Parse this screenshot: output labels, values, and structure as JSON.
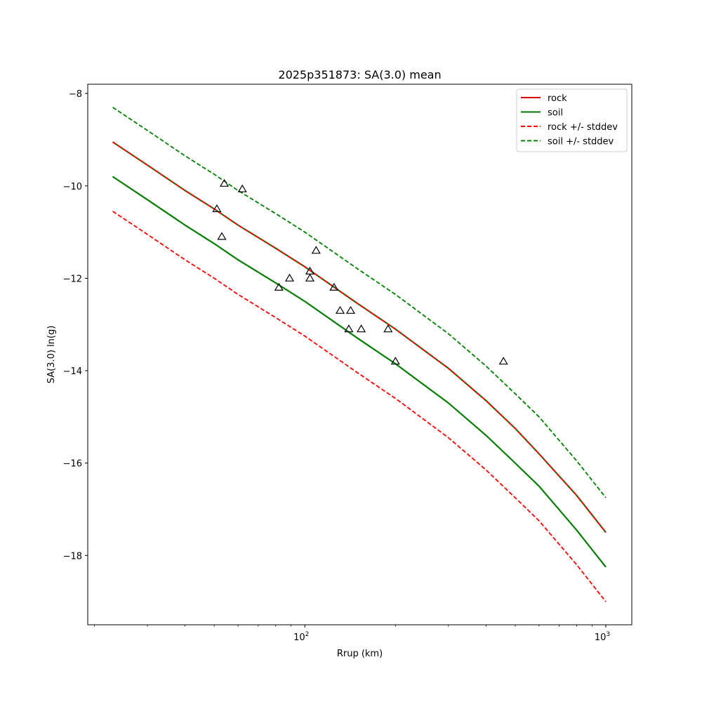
{
  "chart_data": {
    "type": "line",
    "title": "2025p351873: SA(3.0) mean",
    "xlabel": "Rrup (km)",
    "ylabel": "SA(3.0) ln(g)",
    "x_scale": "log",
    "xlim": [
      19,
      1220
    ],
    "ylim": [
      -19.5,
      -7.8
    ],
    "x_ticks": [
      {
        "value": 100,
        "base": "10",
        "exp": "2"
      },
      {
        "value": 1000,
        "base": "10",
        "exp": "3"
      }
    ],
    "y_ticks": [
      {
        "value": -8,
        "label": "−8"
      },
      {
        "value": -10,
        "label": "−10"
      },
      {
        "value": -12,
        "label": "−12"
      },
      {
        "value": -14,
        "label": "−14"
      },
      {
        "value": -16,
        "label": "−16"
      },
      {
        "value": -18,
        "label": "−18"
      }
    ],
    "grid": false,
    "legend_position": "top-right",
    "legend": [
      {
        "label": "rock",
        "color": "#e00000",
        "dash": false
      },
      {
        "label": "soil",
        "color": "#007a00",
        "dash": false
      },
      {
        "label": "rock +/- stddev",
        "color": "#ff0000",
        "dash": true
      },
      {
        "label": "soil +/- stddev",
        "color": "#008000",
        "dash": true
      }
    ],
    "x": [
      23,
      30,
      40,
      50,
      60,
      80,
      100,
      150,
      200,
      300,
      400,
      500,
      600,
      800,
      1000
    ],
    "series": [
      {
        "name": "rock",
        "color": "#e00000",
        "dash": false,
        "values": [
          -9.05,
          -9.55,
          -10.1,
          -10.5,
          -10.85,
          -11.35,
          -11.75,
          -12.55,
          -13.1,
          -13.95,
          -14.65,
          -15.25,
          -15.8,
          -16.7,
          -17.5
        ]
      },
      {
        "name": "soil",
        "color": "#007a00",
        "dash": false,
        "values": [
          -9.05,
          -9.55,
          -10.1,
          -10.5,
          -10.85,
          -11.35,
          -11.75,
          -12.55,
          -13.1,
          -13.95,
          -14.65,
          -15.25,
          -15.8,
          -16.7,
          -17.5
        ]
      },
      {
        "name": "rock",
        "color": "#007a00",
        "dash": false,
        "values": [
          -9.8,
          -10.3,
          -10.85,
          -11.25,
          -11.6,
          -12.1,
          -12.5,
          -13.3,
          -13.85,
          -14.7,
          -15.4,
          -16.0,
          -16.5,
          -17.45,
          -18.25
        ]
      },
      {
        "name": "soil",
        "color": "#007a00",
        "dash": false,
        "values": [
          -9.8,
          -10.3,
          -10.85,
          -11.25,
          -11.6,
          -12.1,
          -12.5,
          -13.3,
          -13.85,
          -14.7,
          -15.4,
          -16.0,
          -16.5,
          -17.45,
          -18.25
        ]
      },
      {
        "name": "rock +/- stddev",
        "color": "#ff0000",
        "dash": true,
        "values": [
          -9.05,
          -9.55,
          -10.1,
          -10.5,
          -10.85,
          -11.35,
          -11.75,
          -12.55,
          -13.1,
          -13.95,
          -14.65,
          -15.25,
          -15.8,
          -16.7,
          -17.5
        ]
      },
      {
        "name": "rock +/- stddev",
        "color": "#ff0000",
        "dash": true,
        "values": [
          -10.55,
          -11.05,
          -11.6,
          -12.0,
          -12.35,
          -12.85,
          -13.25,
          -14.05,
          -14.6,
          -15.45,
          -16.15,
          -16.75,
          -17.25,
          -18.2,
          -19.0
        ]
      },
      {
        "name": "soil +/- stddev",
        "color": "#008000",
        "dash": true,
        "values": [
          -8.3,
          -8.8,
          -9.35,
          -9.75,
          -10.1,
          -10.6,
          -11.0,
          -11.8,
          -12.35,
          -13.2,
          -13.9,
          -14.5,
          -15.0,
          -15.95,
          -16.75
        ]
      },
      {
        "name": "soil +/- stddev",
        "color": "#008000",
        "dash": true,
        "values": [
          -9.8,
          -10.3,
          -10.85,
          -11.25,
          -11.6,
          -12.1,
          -12.5,
          -13.3,
          -13.85,
          -14.7,
          -15.4,
          -16.0,
          -16.5,
          -17.45,
          -18.25
        ]
      }
    ],
    "observations": [
      {
        "x": 54,
        "y": -9.95
      },
      {
        "x": 62,
        "y": -10.07
      },
      {
        "x": 51,
        "y": -10.5
      },
      {
        "x": 53,
        "y": -11.1
      },
      {
        "x": 109,
        "y": -11.4
      },
      {
        "x": 104,
        "y": -11.85
      },
      {
        "x": 89,
        "y": -12.0
      },
      {
        "x": 104,
        "y": -12.0
      },
      {
        "x": 82,
        "y": -12.2
      },
      {
        "x": 125,
        "y": -12.2
      },
      {
        "x": 131,
        "y": -12.7
      },
      {
        "x": 142,
        "y": -12.7
      },
      {
        "x": 140,
        "y": -13.1
      },
      {
        "x": 154,
        "y": -13.1
      },
      {
        "x": 189,
        "y": -13.1
      },
      {
        "x": 200,
        "y": -13.8
      },
      {
        "x": 457,
        "y": -13.8
      }
    ]
  }
}
